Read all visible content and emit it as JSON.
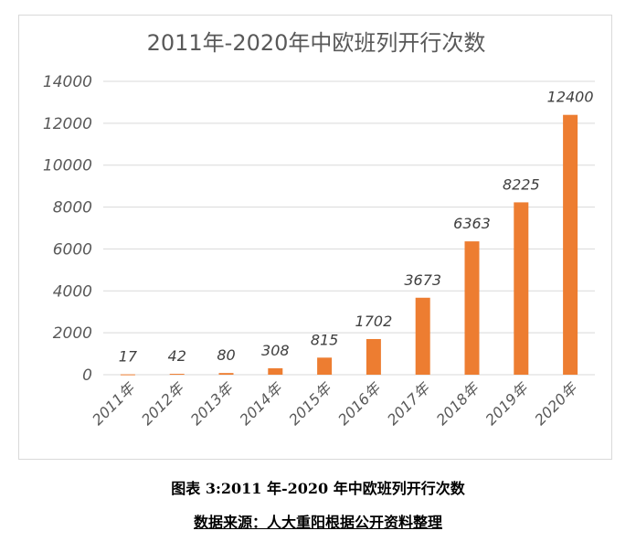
{
  "chart_data": {
    "type": "bar",
    "title": "2011年-2020年中欧班列开行次数",
    "categories": [
      "2011年",
      "2012年",
      "2013年",
      "2014年",
      "2015年",
      "2016年",
      "2017年",
      "2018年",
      "2019年",
      "2020年"
    ],
    "values": [
      17,
      42,
      80,
      308,
      815,
      1702,
      3673,
      6363,
      8225,
      12400
    ],
    "data_labels": [
      "17",
      "42",
      "80",
      "308",
      "815",
      "1702",
      "3673",
      "6363",
      "8225",
      "12400"
    ],
    "y_ticks": [
      "0",
      "2000",
      "4000",
      "6000",
      "8000",
      "10000",
      "12000",
      "14000"
    ],
    "ylim": [
      0,
      14000
    ],
    "grid": true,
    "legend": "none",
    "bar_color": "#ed7d31",
    "grid_color": "#d9d9d9",
    "text_color": "#595959"
  },
  "caption": "图表 3:2011 年-2020 年中欧班列开行次数",
  "source": "数据来源：人大重阳根据公开资料整理"
}
